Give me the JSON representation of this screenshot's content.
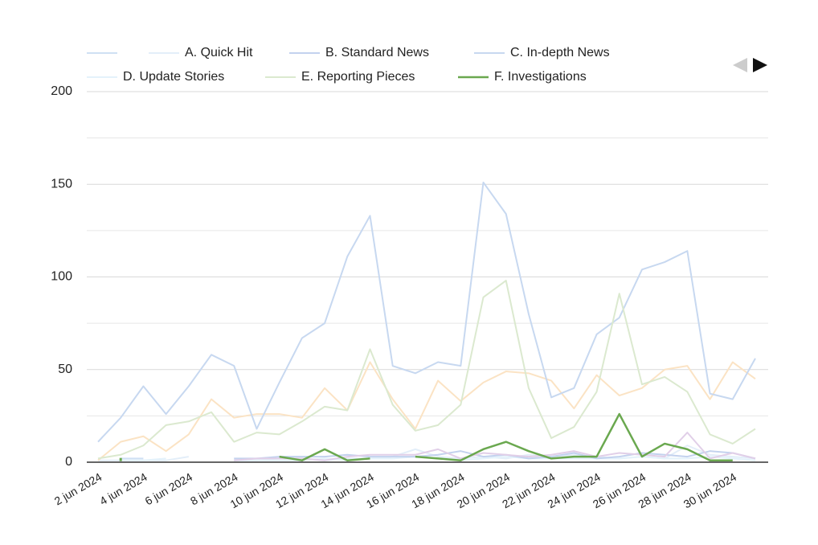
{
  "chart_data": {
    "type": "line",
    "categories": [
      "2 jun 2024",
      null,
      "4 jun 2024",
      null,
      "6 jun 2024",
      null,
      "8 jun 2024",
      null,
      "10 jun 2024",
      null,
      "12 jun 2024",
      null,
      "14 jun 2024",
      null,
      "16 jun 2024",
      null,
      "18 jun 2024",
      null,
      "20 jun 2024",
      null,
      "22 jun 2024",
      null,
      "24 jun 2024",
      null,
      "26 jun 2024",
      null,
      "28 jun 2024",
      null,
      "30 jun 2024",
      null
    ],
    "ylim": [
      0,
      200
    ],
    "yticks": [
      0,
      50,
      100,
      150,
      200
    ],
    "minor_yticks": [
      25,
      75,
      125,
      175
    ],
    "grid": true,
    "series": [
      {
        "name": null,
        "color": "#cfe0f3",
        "values": [
          null,
          2,
          2,
          null,
          null,
          null,
          null,
          null,
          null,
          null,
          null,
          null,
          null,
          null,
          null,
          null,
          null,
          null,
          null,
          null,
          null,
          null,
          null,
          null,
          null,
          null,
          null,
          null,
          null,
          null
        ]
      },
      {
        "name": "A. Quick Hit",
        "color": "#e3eef9",
        "values": [
          1,
          1,
          1,
          1,
          3,
          null,
          1,
          1,
          2,
          2,
          1,
          2,
          2,
          3,
          7,
          3,
          2,
          3,
          2,
          4,
          3,
          4,
          3,
          2,
          3,
          2,
          9,
          4,
          3,
          2
        ]
      },
      {
        "name": "B. Standard News",
        "color": "#c3d2ee",
        "values": [
          null,
          null,
          null,
          null,
          null,
          null,
          2,
          2,
          3,
          3,
          3,
          4,
          3,
          3,
          3,
          4,
          6,
          3,
          4,
          2,
          3,
          5,
          2,
          3,
          5,
          4,
          3,
          6,
          5,
          2
        ]
      },
      {
        "name": "C. In-depth News",
        "color": "#c7d8f0",
        "values": [
          11,
          24,
          41,
          26,
          41,
          58,
          52,
          18,
          43,
          67,
          75,
          111,
          133,
          52,
          48,
          54,
          52,
          151,
          134,
          80,
          35,
          40,
          69,
          78,
          104,
          108,
          114,
          37,
          34,
          56
        ]
      },
      {
        "name": "D. Update Stories",
        "color": "#e4f2fb",
        "values": [
          null,
          1,
          1,
          2,
          null,
          null,
          1,
          1,
          1,
          1,
          2,
          1,
          2,
          2,
          3,
          2,
          1,
          2,
          3,
          2,
          2,
          2,
          2,
          2,
          3,
          2,
          2,
          3,
          2,
          1
        ]
      },
      {
        "name": "E. Reporting Pieces",
        "color": "#dbe9cf",
        "values": [
          2,
          4,
          9,
          20,
          22,
          27,
          11,
          16,
          15,
          22,
          30,
          28,
          61,
          31,
          17,
          20,
          31,
          89,
          98,
          40,
          13,
          19,
          38,
          91,
          42,
          46,
          38,
          15,
          10,
          18
        ]
      },
      {
        "name": "F. Investigations",
        "color": "#6aa84f",
        "values": [
          null,
          1,
          null,
          null,
          null,
          null,
          null,
          null,
          3,
          1,
          7,
          1,
          2,
          null,
          3,
          2,
          1,
          7,
          11,
          6,
          2,
          3,
          3,
          26,
          3,
          10,
          7,
          1,
          1,
          null
        ]
      },
      {
        "name": null,
        "color": "#fbe3c4",
        "values": [
          1,
          11,
          14,
          6,
          15,
          34,
          24,
          26,
          26,
          24,
          40,
          28,
          54,
          34,
          18,
          44,
          33,
          43,
          49,
          48,
          44,
          29,
          47,
          36,
          40,
          50,
          52,
          34,
          54,
          45
        ]
      },
      {
        "name": null,
        "color": "#e1cfe8",
        "values": [
          null,
          null,
          null,
          null,
          null,
          null,
          1,
          2,
          2,
          2,
          1,
          3,
          4,
          4,
          4,
          7,
          2,
          5,
          4,
          3,
          4,
          6,
          3,
          5,
          4,
          3,
          16,
          2,
          5,
          2
        ]
      }
    ]
  }
}
